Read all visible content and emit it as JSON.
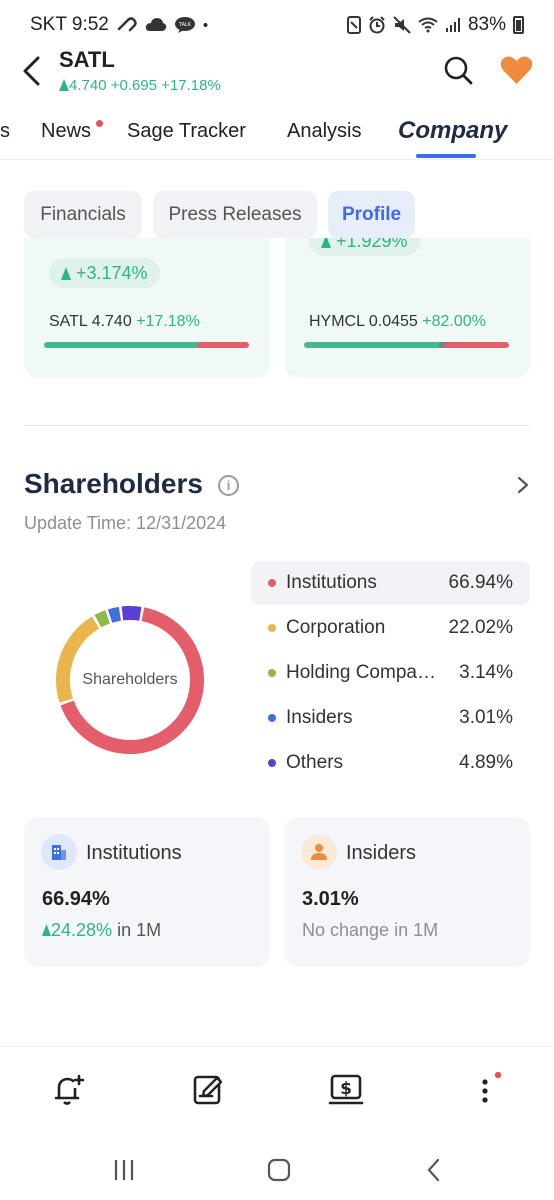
{
  "status_bar": {
    "carrier_time": "SKT 9:52",
    "left_icons": [
      "link-icon",
      "cloud-icon",
      "talk-icon",
      "dot-icon"
    ],
    "right_icons": [
      "nfc-icon",
      "alarm-icon",
      "mute-icon",
      "wifi-icon",
      "signal-icon"
    ],
    "battery": "83%"
  },
  "header": {
    "ticker": "SATL",
    "price": "4.740",
    "change": "+0.695",
    "change_pct": "+17.18%",
    "trend": "up"
  },
  "tabs": [
    {
      "label": "s",
      "active": false
    },
    {
      "label": "News",
      "active": false,
      "badge": true
    },
    {
      "label": "Sage Tracker",
      "active": false
    },
    {
      "label": "Analysis",
      "active": false
    },
    {
      "label": "Company",
      "active": true
    }
  ],
  "subtabs": [
    {
      "label": "Financials",
      "active": false
    },
    {
      "label": "Press Releases",
      "active": false
    },
    {
      "label": "Profile",
      "active": true
    }
  ],
  "peers": [
    {
      "pill": "+3.174%",
      "ticker": "SATL",
      "price": "4.740",
      "change": "+17.18%",
      "bar": {
        "up": 0.75,
        "flat": 0.0,
        "down": 0.25
      }
    },
    {
      "pill": "+1.929%",
      "ticker": "HYMCL",
      "price": "0.0455",
      "change": "+82.00%",
      "bar": {
        "up": 0.66,
        "flat": 0.03,
        "down": 0.31
      }
    }
  ],
  "shareholders": {
    "title": "Shareholders",
    "update_time": "Update Time: 12/31/2024",
    "donut_label": "Shareholders",
    "items": [
      {
        "name": "Institutions",
        "pct": "66.94%",
        "value": 66.94,
        "color": "#e45d6a"
      },
      {
        "name": "Corporation",
        "pct": "22.02%",
        "value": 22.02,
        "color": "#e8b64a"
      },
      {
        "name": "Holding Compa…",
        "pct": "3.14%",
        "value": 3.14,
        "color": "#8fb849"
      },
      {
        "name": "Insiders",
        "pct": "3.01%",
        "value": 3.01,
        "color": "#3f6fe0"
      },
      {
        "name": "Others",
        "pct": "4.89%",
        "value": 4.89,
        "color": "#5a3fd6"
      }
    ],
    "cards": [
      {
        "title": "Institutions",
        "value": "66.94%",
        "change": "24.28%",
        "suffix": " in 1M",
        "trend": "up"
      },
      {
        "title": "Insiders",
        "value": "3.01%",
        "change": "",
        "suffix": "No change in 1M",
        "trend": "none"
      }
    ]
  },
  "colors": {
    "accent": "#3d6bf0",
    "up": "#2eb38a",
    "down": "#e45d6a",
    "heart": "#f08a3c"
  }
}
